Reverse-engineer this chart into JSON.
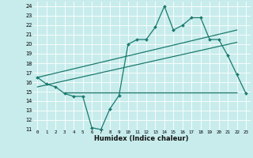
{
  "title": "",
  "xlabel": "Humidex (Indice chaleur)",
  "bg_color": "#c8ecec",
  "grid_color": "#ffffff",
  "line_color": "#1a7a6e",
  "xlim": [
    -0.5,
    23.5
  ],
  "ylim": [
    11,
    24.5
  ],
  "yticks": [
    11,
    12,
    13,
    14,
    15,
    16,
    17,
    18,
    19,
    20,
    21,
    22,
    23,
    24
  ],
  "xticks": [
    0,
    1,
    2,
    3,
    4,
    5,
    6,
    7,
    8,
    9,
    10,
    11,
    12,
    13,
    14,
    15,
    16,
    17,
    18,
    19,
    20,
    21,
    22,
    23
  ],
  "main_line": [
    16.5,
    15.8,
    15.5,
    14.8,
    14.5,
    14.5,
    11.2,
    11.0,
    13.2,
    14.6,
    20.0,
    20.5,
    20.5,
    21.8,
    24.0,
    21.5,
    22.0,
    22.8,
    22.8,
    20.5,
    20.5,
    18.8,
    16.8,
    14.8
  ],
  "reg_line1_x": [
    0,
    22
  ],
  "reg_line1_y": [
    16.5,
    21.5
  ],
  "reg_line2_x": [
    0,
    22
  ],
  "reg_line2_y": [
    15.5,
    20.2
  ],
  "horiz_line_y": 14.95,
  "horiz_line_x_start": 3,
  "horiz_line_x_end": 22
}
